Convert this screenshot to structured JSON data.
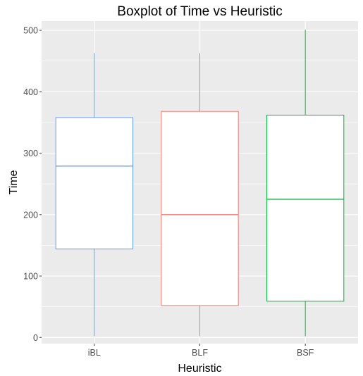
{
  "chart_data": {
    "type": "boxplot",
    "title": "Boxplot of Time vs Heuristic",
    "xlabel": "Heuristic",
    "ylabel": "Time",
    "categories": [
      "iBL",
      "BLF",
      "BSF"
    ],
    "ylim": [
      -10,
      515
    ],
    "y_ticks": [
      0,
      100,
      200,
      300,
      400,
      500
    ],
    "grid": true,
    "background": "#ebebeb",
    "gridline_color": "#ffffff",
    "series": [
      {
        "category": "iBL",
        "color": "#619cff",
        "min": 2,
        "q1": 144,
        "median": 279,
        "q3": 358,
        "max": 463
      },
      {
        "category": "BLF",
        "color": "#f8766d",
        "min": 2,
        "q1": 52,
        "median": 200,
        "q3": 368,
        "max": 463
      },
      {
        "category": "BSF",
        "color": "#00ba38",
        "min": 2,
        "q1": 59,
        "median": 225,
        "q3": 362,
        "max": 501
      }
    ]
  }
}
